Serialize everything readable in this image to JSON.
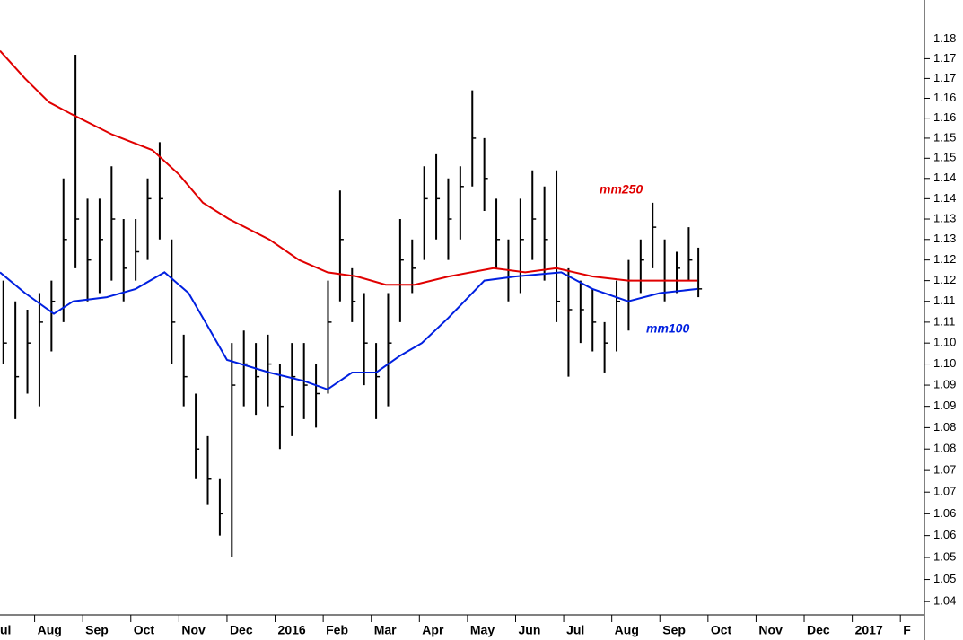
{
  "chart_data": {
    "type": "ohlc",
    "log_scale": true,
    "xlim": [
      0.28,
      19.5
    ],
    "ylim": [
      1.037,
      1.185
    ],
    "xticks": [
      {
        "value": 0,
        "label": "ul"
      },
      {
        "value": 1,
        "label": "Aug"
      },
      {
        "value": 2,
        "label": "Sep"
      },
      {
        "value": 3,
        "label": "Oct"
      },
      {
        "value": 4,
        "label": "Nov"
      },
      {
        "value": 5,
        "label": "Dec"
      },
      {
        "value": 6,
        "label": "2016"
      },
      {
        "value": 7,
        "label": "Feb"
      },
      {
        "value": 8,
        "label": "Mar"
      },
      {
        "value": 9,
        "label": "Apr"
      },
      {
        "value": 10,
        "label": "May"
      },
      {
        "value": 11,
        "label": "Jun"
      },
      {
        "value": 12,
        "label": "Jul"
      },
      {
        "value": 13,
        "label": "Aug"
      },
      {
        "value": 14,
        "label": "Sep"
      },
      {
        "value": 15,
        "label": "Oct"
      },
      {
        "value": 16,
        "label": "Nov"
      },
      {
        "value": 17,
        "label": "Dec"
      },
      {
        "value": 18,
        "label": "2017"
      },
      {
        "value": 19,
        "label": "F"
      }
    ],
    "yticks": [
      {
        "value": 1.175,
        "label": "1.18"
      },
      1.17,
      {
        "value": 1.165,
        "label": "1.17"
      },
      1.16,
      {
        "value": 1.155,
        "label": "1.16"
      },
      1.15,
      {
        "value": 1.145,
        "label": "1.15"
      },
      1.14,
      {
        "value": 1.135,
        "label": "1.14"
      },
      1.13,
      {
        "value": 1.125,
        "label": "1.13"
      },
      1.12,
      {
        "value": 1.115,
        "label": "1.12"
      },
      1.11,
      {
        "value": 1.105,
        "label": "1.11"
      },
      {
        "value": 1.1,
        "label": "1.10"
      },
      {
        "value": 1.095,
        "label": "1.10"
      },
      1.09,
      {
        "value": 1.085,
        "label": "1.09"
      },
      1.08,
      {
        "value": 1.075,
        "label": "1.08"
      },
      1.07,
      {
        "value": 1.065,
        "label": "1.07"
      },
      1.06,
      {
        "value": 1.055,
        "label": "1.06"
      },
      1.05,
      {
        "value": 1.045,
        "label": "1.05"
      },
      1.04
    ],
    "bars": {
      "color": "#000000",
      "x": [
        0.35,
        0.6,
        0.85,
        1.1,
        1.35,
        1.6,
        1.85,
        2.1,
        2.35,
        2.6,
        2.85,
        3.1,
        3.35,
        3.6,
        3.85,
        4.1,
        4.35,
        4.6,
        4.85,
        5.1,
        5.35,
        5.6,
        5.85,
        6.1,
        6.35,
        6.6,
        6.85,
        7.1,
        7.35,
        7.6,
        7.85,
        8.1,
        8.35,
        8.6,
        8.85,
        9.1,
        9.35,
        9.6,
        9.85,
        10.1,
        10.35,
        10.6,
        10.85,
        11.1,
        11.35,
        11.6,
        11.85,
        12.1,
        12.35,
        12.6,
        12.85,
        13.1,
        13.35,
        13.6,
        13.85,
        14.1,
        14.35,
        14.6,
        14.8
      ],
      "high": [
        1.115,
        1.11,
        1.108,
        1.112,
        1.115,
        1.14,
        1.171,
        1.135,
        1.135,
        1.143,
        1.13,
        1.13,
        1.14,
        1.149,
        1.125,
        1.102,
        1.088,
        1.078,
        1.068,
        1.1,
        1.103,
        1.1,
        1.102,
        1.095,
        1.1,
        1.1,
        1.095,
        1.115,
        1.137,
        1.118,
        1.112,
        1.1,
        1.112,
        1.13,
        1.125,
        1.143,
        1.146,
        1.14,
        1.143,
        1.162,
        1.15,
        1.135,
        1.125,
        1.135,
        1.142,
        1.138,
        1.142,
        1.118,
        1.115,
        1.113,
        1.105,
        1.115,
        1.12,
        1.125,
        1.134,
        1.125,
        1.122,
        1.128,
        1.123
      ],
      "low": [
        1.095,
        1.082,
        1.088,
        1.085,
        1.098,
        1.105,
        1.118,
        1.11,
        1.112,
        1.115,
        1.11,
        1.115,
        1.12,
        1.125,
        1.095,
        1.085,
        1.068,
        1.062,
        1.055,
        1.05,
        1.085,
        1.083,
        1.085,
        1.075,
        1.078,
        1.082,
        1.08,
        1.088,
        1.11,
        1.105,
        1.09,
        1.082,
        1.085,
        1.105,
        1.112,
        1.12,
        1.125,
        1.12,
        1.125,
        1.138,
        1.132,
        1.118,
        1.11,
        1.112,
        1.12,
        1.115,
        1.105,
        1.092,
        1.1,
        1.098,
        1.093,
        1.098,
        1.103,
        1.112,
        1.118,
        1.11,
        1.112,
        1.115,
        1.111
      ],
      "close": [
        1.1,
        1.092,
        1.1,
        1.105,
        1.11,
        1.125,
        1.13,
        1.12,
        1.125,
        1.13,
        1.118,
        1.122,
        1.135,
        1.135,
        1.105,
        1.092,
        1.075,
        1.068,
        1.06,
        1.09,
        1.095,
        1.092,
        1.095,
        1.085,
        1.092,
        1.09,
        1.088,
        1.105,
        1.125,
        1.11,
        1.1,
        1.092,
        1.1,
        1.12,
        1.118,
        1.135,
        1.135,
        1.13,
        1.138,
        1.15,
        1.14,
        1.125,
        1.116,
        1.125,
        1.13,
        1.125,
        1.11,
        1.108,
        1.108,
        1.105,
        1.1,
        1.11,
        1.115,
        1.12,
        1.128,
        1.115,
        1.118,
        1.12,
        1.113
      ]
    },
    "series": [
      {
        "name": "mm250",
        "color": "#e00000",
        "x": [
          0.28,
          0.8,
          1.3,
          1.77,
          2.6,
          3.45,
          4.0,
          4.5,
          5.04,
          5.88,
          6.5,
          7.09,
          7.7,
          8.3,
          8.9,
          9.61,
          10.54,
          11.2,
          11.85,
          12.6,
          13.34,
          14.78
        ],
        "values": [
          1.172,
          1.165,
          1.159,
          1.156,
          1.151,
          1.147,
          1.141,
          1.134,
          1.13,
          1.125,
          1.12,
          1.117,
          1.116,
          1.114,
          1.114,
          1.116,
          1.118,
          1.117,
          1.118,
          1.116,
          1.115,
          1.115
        ]
      },
      {
        "name": "mm100",
        "color": "#0020e0",
        "x": [
          0.28,
          0.8,
          1.4,
          1.8,
          2.5,
          3.1,
          3.7,
          4.2,
          4.6,
          5.0,
          5.88,
          6.6,
          7.09,
          7.6,
          8.1,
          8.6,
          9.05,
          9.6,
          10.35,
          11.0,
          11.95,
          12.6,
          13.34,
          14.0,
          14.78
        ],
        "values": [
          1.117,
          1.112,
          1.107,
          1.11,
          1.111,
          1.113,
          1.117,
          1.112,
          1.104,
          1.096,
          1.093,
          1.091,
          1.089,
          1.093,
          1.093,
          1.097,
          1.1,
          1.106,
          1.115,
          1.116,
          1.117,
          1.113,
          1.11,
          1.112,
          1.113
        ]
      }
    ]
  }
}
